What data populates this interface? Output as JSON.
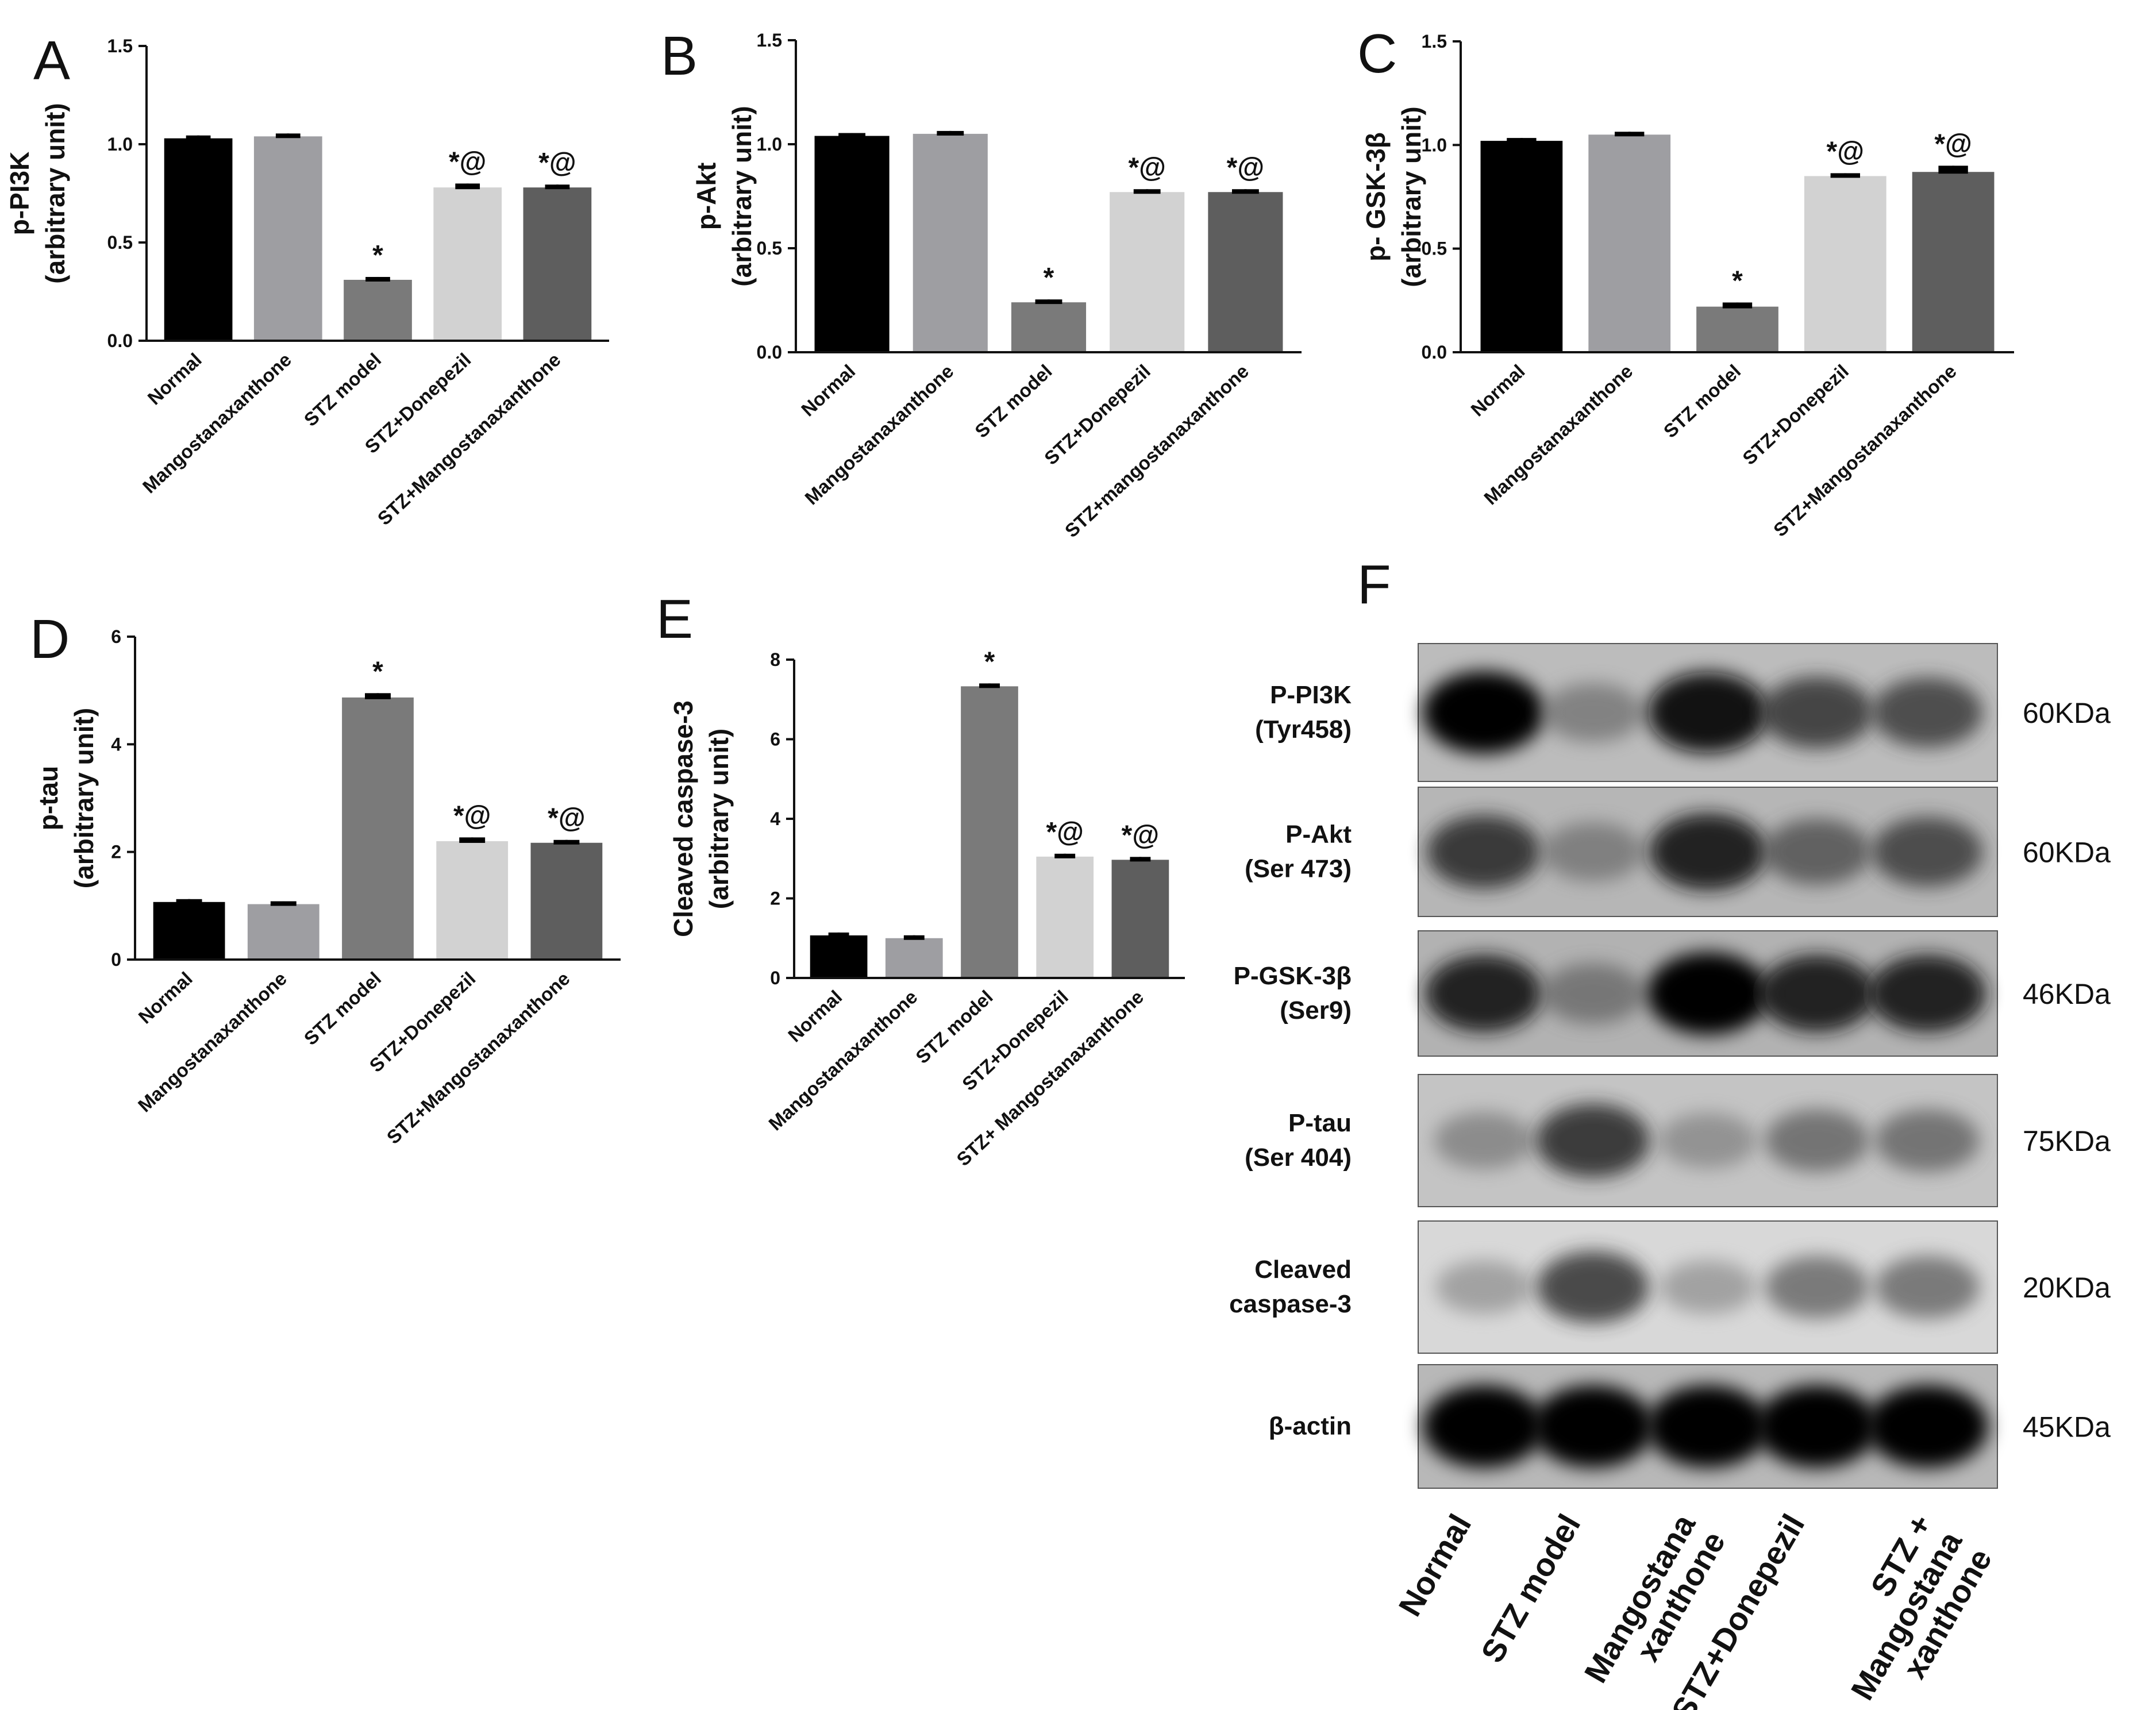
{
  "chart_data": [
    {
      "panel": "A",
      "type": "bar",
      "ylabel_lines": [
        "p-PI3K",
        "(arbitrary unit)"
      ],
      "categories": [
        "Normal",
        "Mangostanaxanthone",
        "STZ model",
        "STZ+Donepezil",
        "STZ+Mangostanaxanthone"
      ],
      "values": [
        1.03,
        1.04,
        0.31,
        0.78,
        0.78
      ],
      "errors": [
        0.01,
        0.01,
        0.01,
        0.02,
        0.01
      ],
      "annotations": [
        "",
        "",
        "*",
        "*@",
        "*@"
      ],
      "colors": [
        "#000000",
        "#9e9ea2",
        "#7a7a7a",
        "#d2d2d2",
        "#5e5e5e"
      ],
      "yticks": [
        "0.0",
        "0.5",
        "1.0",
        "1.5"
      ],
      "ylim": [
        0,
        1.5
      ]
    },
    {
      "panel": "B",
      "type": "bar",
      "ylabel_lines": [
        "p-Akt",
        "(arbitrary unit)"
      ],
      "categories": [
        "Normal",
        "Mangostanaxanthone",
        "STZ model",
        "STZ+Donepezil",
        "STZ+mangostanaxanthone"
      ],
      "values": [
        1.04,
        1.05,
        0.24,
        0.77,
        0.77
      ],
      "errors": [
        0.01,
        0.01,
        0.01,
        0.01,
        0.01
      ],
      "annotations": [
        "",
        "",
        "*",
        "*@",
        "*@"
      ],
      "colors": [
        "#000000",
        "#9e9ea2",
        "#7a7a7a",
        "#d2d2d2",
        "#5e5e5e"
      ],
      "yticks": [
        "0.0",
        "0.5",
        "1.0",
        "1.5"
      ],
      "ylim": [
        0,
        1.5
      ]
    },
    {
      "panel": "C",
      "type": "bar",
      "ylabel_lines": [
        "p- GSK-3β",
        "(arbitrary unit)"
      ],
      "categories": [
        "Normal",
        "Mangostanaxanthone",
        "STZ model",
        "STZ+Donepezil",
        "STZ+Mangostanaxanthone"
      ],
      "values": [
        1.02,
        1.05,
        0.22,
        0.85,
        0.87
      ],
      "errors": [
        0.01,
        0.01,
        0.02,
        0.01,
        0.03
      ],
      "annotations": [
        "",
        "",
        "*",
        "*@",
        "*@"
      ],
      "colors": [
        "#000000",
        "#9e9ea2",
        "#7a7a7a",
        "#d2d2d2",
        "#5e5e5e"
      ],
      "yticks": [
        "0.0",
        "0.5",
        "1.0",
        "1.5"
      ],
      "ylim": [
        0,
        1.5
      ]
    },
    {
      "panel": "D",
      "type": "bar",
      "ylabel_lines": [
        "p-tau",
        "(arbitrary unit)"
      ],
      "categories": [
        "Normal",
        "Mangostanaxanthone",
        "STZ model",
        "STZ+Donepezil",
        "STZ+Mangostanaxanthone"
      ],
      "values": [
        1.07,
        1.03,
        4.87,
        2.2,
        2.17
      ],
      "errors": [
        0.02,
        0.02,
        0.08,
        0.07,
        0.05
      ],
      "annotations": [
        "",
        "",
        "*",
        "*@",
        "*@"
      ],
      "colors": [
        "#000000",
        "#9e9ea2",
        "#7a7a7a",
        "#d2d2d2",
        "#5e5e5e"
      ],
      "yticks": [
        "0",
        "2",
        "4",
        "6"
      ],
      "ylim": [
        0,
        6
      ]
    },
    {
      "panel": "E",
      "type": "bar",
      "ylabel_lines": [
        "Cleaved caspase-3",
        "(arbitrary unit)"
      ],
      "categories": [
        "Normal",
        "Mangostanaxanthone",
        "STZ model",
        "STZ+Donepezil",
        "STZ+ Mangostanaxanthone"
      ],
      "values": [
        1.07,
        1.0,
        7.33,
        3.05,
        2.97
      ],
      "errors": [
        0.03,
        0.03,
        0.03,
        0.05,
        0.04
      ],
      "annotations": [
        "",
        "",
        "*",
        "*@",
        "*@"
      ],
      "colors": [
        "#000000",
        "#9e9ea2",
        "#7a7a7a",
        "#d2d2d2",
        "#5e5e5e"
      ],
      "yticks": [
        "0",
        "2",
        "4",
        "6",
        "8"
      ],
      "ylim": [
        0,
        8
      ]
    }
  ],
  "blot": {
    "panel": "F",
    "rows": [
      {
        "label_lines": [
          "P-PI3K",
          "(Tyr458)"
        ],
        "kda": "60KDa",
        "intensities": [
          1.0,
          0.35,
          0.95,
          0.7,
          0.65
        ],
        "background": "#bcbcbc"
      },
      {
        "label_lines": [
          "P-Akt",
          "(Ser 473)"
        ],
        "kda": "60KDa",
        "intensities": [
          0.75,
          0.35,
          0.85,
          0.55,
          0.65
        ],
        "background": "#b6b6b6"
      },
      {
        "label_lines": [
          "P-GSK-3β",
          "(Ser9)"
        ],
        "kda": "46KDa",
        "intensities": [
          0.85,
          0.4,
          1.0,
          0.85,
          0.85
        ],
        "background": "#b2b2b2"
      },
      {
        "label_lines": [
          "P-tau",
          "(Ser 404)"
        ],
        "kda": "75KDa",
        "intensities": [
          0.3,
          0.75,
          0.25,
          0.45,
          0.45
        ],
        "background": "#c4c4c4"
      },
      {
        "label_lines": [
          "Cleaved",
          "caspase-3"
        ],
        "kda": "20KDa",
        "intensities": [
          0.2,
          0.7,
          0.2,
          0.45,
          0.45
        ],
        "background": "#d8d8d8"
      },
      {
        "label_lines": [
          "β-actin"
        ],
        "kda": "45KDa",
        "intensities": [
          1.0,
          1.0,
          1.0,
          1.0,
          1.0
        ],
        "background": "#b8b8b8"
      }
    ],
    "lanes": [
      [
        "Normal"
      ],
      [
        "STZ model"
      ],
      [
        "Mangostana",
        "xanthone"
      ],
      [
        "STZ+Donepezil"
      ],
      [
        "STZ +",
        "Mangostana",
        "xanthone"
      ]
    ]
  }
}
